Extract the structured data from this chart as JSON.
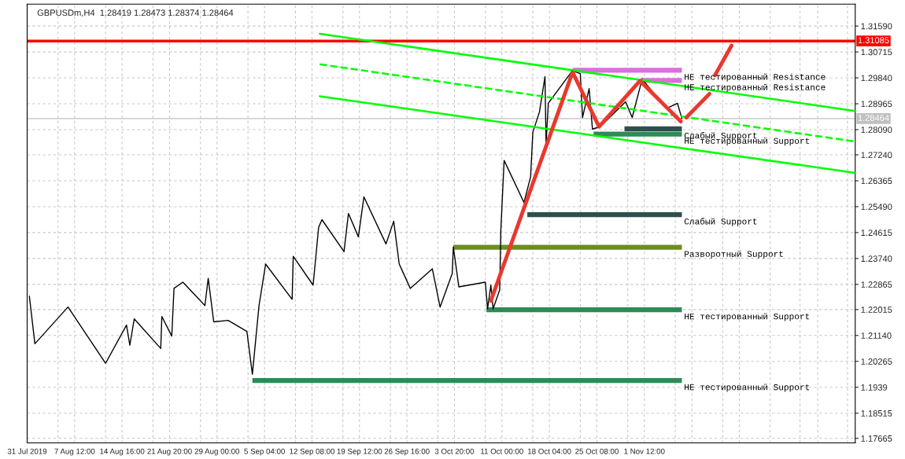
{
  "chart_data": {
    "type": "line",
    "title": "GBPUSDm,H4  1.28419 1.28473 1.28374 1.28464",
    "xlim": [
      "2019-07-31T08:00",
      "2019-12-03T08:00"
    ],
    "ylim": [
      1.1751,
      1.3233
    ],
    "xticks": [
      {
        "value": "2019-07-31T08:00",
        "label": "31 Jul 2019"
      },
      {
        "value": "2019-08-05T00:00",
        "label": null
      },
      {
        "value": "2019-08-07T12:00",
        "label": "7 Aug 12:00"
      },
      {
        "value": "2019-08-12T04:00",
        "label": null
      },
      {
        "value": "2019-08-14T16:00",
        "label": "14 Aug 16:00"
      },
      {
        "value": "2019-08-19T08:00",
        "label": null
      },
      {
        "value": "2019-08-21T20:00",
        "label": "21 Aug 20:00"
      },
      {
        "value": "2019-08-26T12:00",
        "label": null
      },
      {
        "value": "2019-08-29T00:00",
        "label": "29 Aug 00:00"
      },
      {
        "value": "2019-09-02T16:00",
        "label": null
      },
      {
        "value": "2019-09-05T04:00",
        "label": "5 Sep 04:00"
      },
      {
        "value": "2019-09-09T20:00",
        "label": null
      },
      {
        "value": "2019-09-12T08:00",
        "label": "12 Sep 08:00"
      },
      {
        "value": "2019-09-17T00:00",
        "label": null
      },
      {
        "value": "2019-09-19T12:00",
        "label": "19 Sep 12:00"
      },
      {
        "value": "2019-09-24T04:00",
        "label": null
      },
      {
        "value": "2019-09-26T16:00",
        "label": "26 Sep 16:00"
      },
      {
        "value": "2019-10-01T08:00",
        "label": null
      },
      {
        "value": "2019-10-03T20:00",
        "label": "3 Oct 20:00"
      },
      {
        "value": "2019-10-08T12:00",
        "label": null
      },
      {
        "value": "2019-10-11T00:00",
        "label": "11 Oct 00:00"
      },
      {
        "value": "2019-10-15T16:00",
        "label": null
      },
      {
        "value": "2019-10-18T04:00",
        "label": "18 Oct 04:00"
      },
      {
        "value": "2019-10-22T20:00",
        "label": null
      },
      {
        "value": "2019-10-25T08:00",
        "label": "25 Oct 08:00"
      },
      {
        "value": "2019-10-30T00:00",
        "label": null
      },
      {
        "value": "2019-11-01T12:00",
        "label": "1 Nov 12:00"
      },
      {
        "value": "2019-11-06T04:00",
        "label": null
      },
      {
        "value": "2019-11-08T16:00",
        "label": null
      },
      {
        "value": "2019-11-13T08:00",
        "label": null
      },
      {
        "value": "2019-11-15T20:00",
        "label": null
      },
      {
        "value": "2019-11-20T12:00",
        "label": null
      },
      {
        "value": "2019-11-25T00:00",
        "label": null
      },
      {
        "value": "2019-11-27T16:00",
        "label": null
      },
      {
        "value": "2019-12-02T04:00",
        "label": null
      }
    ],
    "yticks": [
      {
        "value": 1.3159,
        "label": "1.31590"
      },
      1.30715,
      {
        "value": 1.2984,
        "label": "1.29840"
      },
      1.28965,
      {
        "value": 1.2809,
        "label": "1.28090"
      },
      {
        "value": 1.2724,
        "label": "1.27240"
      },
      1.26365,
      {
        "value": 1.2549,
        "label": "1.25490"
      },
      1.24615,
      {
        "value": 1.2374,
        "label": "1.23740"
      },
      1.22865,
      1.22015,
      {
        "value": 1.2114,
        "label": "1.21140"
      },
      1.20265,
      1.1939,
      1.18515,
      1.17665
    ],
    "grid": true,
    "series": [
      {
        "color": "#000000",
        "x": [
          "2019-07-31T16:00",
          "2019-08-01T12:00",
          "2019-08-06T12:00",
          "2019-08-12T04:00",
          "2019-08-15T08:00",
          "2019-08-15T20:00",
          "2019-08-16T12:00",
          "2019-08-20T12:00",
          "2019-08-20T16:00",
          "2019-08-22T04:00",
          "2019-08-22T12:00",
          "2019-08-23T20:00",
          "2019-08-27T04:00",
          "2019-08-27T16:00",
          "2019-08-28T12:00",
          "2019-08-30T16:00",
          "2019-09-02T12:00",
          "2019-09-03T08:00",
          "2019-09-04T08:00",
          "2019-09-05T08:00",
          "2019-09-09T08:00",
          "2019-09-09T12:00",
          "2019-09-12T12:00",
          "2019-09-13T08:00",
          "2019-09-13T20:00",
          "2019-09-17T04:00",
          "2019-09-17T20:00",
          "2019-09-19T08:00",
          "2019-09-20T04:00",
          "2019-09-23T12:00",
          "2019-09-24T16:00",
          "2019-09-25T12:00",
          "2019-09-27T04:00",
          "2019-09-30T12:00",
          "2019-10-01T16:00",
          "2019-10-03T12:00",
          "2019-10-03T16:00",
          "2019-10-04T12:00",
          "2019-10-08T12:00",
          "2019-10-08T20:00",
          "2019-10-09T08:00",
          "2019-10-09T16:00",
          "2019-10-10T16:00",
          "2019-10-10T20:00",
          "2019-10-11T08:00",
          "2019-10-14T08:00",
          "2019-10-15T08:00",
          "2019-10-15T16:00",
          "2019-10-16T16:00",
          "2019-10-17T12:00",
          "2019-10-17T16:00",
          "2019-10-18T00:00",
          "2019-10-21T16:00",
          "2019-10-22T20:00",
          "2019-10-23T04:00",
          "2019-10-24T04:00",
          "2019-10-24T16:00",
          "2019-10-25T20:00",
          "2019-10-29T16:00",
          "2019-10-30T16:00",
          "2019-11-01T04:00",
          "2019-11-04T20:00",
          "2019-11-06T12:00",
          "2019-11-07T04:00"
        ],
        "values": [
          1.2247,
          1.2086,
          1.221,
          1.202,
          1.2149,
          1.2081,
          1.217,
          1.207,
          1.2178,
          1.2112,
          1.2273,
          1.2294,
          1.2215,
          1.2307,
          1.216,
          1.2165,
          1.2128,
          1.1983,
          1.2215,
          1.2355,
          1.2236,
          1.2381,
          1.2284,
          1.2479,
          1.2505,
          1.2397,
          1.2526,
          1.2447,
          1.2582,
          1.2423,
          1.25,
          1.2355,
          1.2273,
          1.2339,
          1.221,
          1.2323,
          1.2413,
          1.2278,
          1.2294,
          1.2204,
          1.2284,
          1.2204,
          1.2268,
          1.2468,
          1.2705,
          1.2563,
          1.265,
          1.28,
          1.2869,
          1.2988,
          1.2761,
          1.2898,
          1.3009,
          1.2998,
          1.285,
          1.2948,
          1.2811,
          1.2819,
          1.2903,
          1.285,
          1.298,
          1.288,
          1.2898,
          1.28464
        ]
      },
      {
        "color": "#00ff00",
        "x": [
          "2019-09-13T12:00",
          "2019-12-03T08:00"
        ],
        "values": [
          1.3133,
          1.2872
        ]
      },
      {
        "color": "#00ff00",
        "line_style": "dashed",
        "x": [
          "2019-09-13T12:00",
          "2019-12-03T08:00"
        ],
        "values": [
          1.303,
          1.2769
        ]
      },
      {
        "color": "#00ff00",
        "x": [
          "2019-09-13T12:00",
          "2019-12-03T08:00"
        ],
        "values": [
          1.2922,
          1.2663
        ]
      },
      {
        "name": "НЕ тестированный Resistance",
        "color": "#dd6edd",
        "x": [
          "2019-10-21T16:00",
          "2019-11-07T04:00"
        ],
        "values": [
          1.301,
          1.301
        ]
      },
      {
        "name": "НЕ тестированный Resistance",
        "color": "#dd6edd",
        "x": [
          "2019-11-01T00:00",
          "2019-11-07T04:00"
        ],
        "values": [
          1.2975,
          1.2975
        ]
      },
      {
        "name": "НЕ тестированный Support",
        "color": "#2e8b57",
        "x": [
          "2019-10-24T20:00",
          "2019-11-07T04:00"
        ],
        "values": [
          1.2794,
          1.2794
        ]
      },
      {
        "name": "Слабый Support",
        "color": "#2f4f4f",
        "x": [
          "2019-10-29T12:00",
          "2019-11-07T04:00"
        ],
        "values": [
          1.2812,
          1.2812
        ]
      },
      {
        "name": "Слабый Support",
        "color": "#2f4f4f",
        "x": [
          "2019-10-14T20:00",
          "2019-11-07T04:00"
        ],
        "values": [
          1.2522,
          1.2522
        ]
      },
      {
        "name": "Разворотный Support",
        "color": "#6b8e23",
        "x": [
          "2019-10-03T16:00",
          "2019-11-07T04:00"
        ],
        "values": [
          1.2412,
          1.2412
        ]
      },
      {
        "name": "НЕ тестированный Support",
        "color": "#2e8b57",
        "x": [
          "2019-10-08T16:00",
          "2019-11-07T04:00"
        ],
        "values": [
          1.2201,
          1.2201
        ]
      },
      {
        "name": "НЕ тестированный Support",
        "color": "#2e8b57",
        "x": [
          "2019-09-03T08:00",
          "2019-11-07T04:00"
        ],
        "values": [
          1.1962,
          1.1962
        ]
      },
      {
        "color": "#e8392e",
        "x": [
          "2019-10-09T08:00",
          "2019-10-21T16:00",
          "2019-10-25T16:00",
          "2019-10-31T20:00",
          "2019-11-07T00:00"
        ],
        "values": [
          1.2231,
          1.3003,
          1.2819,
          1.2974,
          1.2837
        ]
      },
      {
        "color": "#e8392e",
        "x": [
          "2019-11-07T20:00",
          "2019-11-11T08:00"
        ],
        "values": [
          1.285,
          1.293
        ]
      },
      {
        "color": "#e8392e",
        "x": [
          "2019-11-12T04:00",
          "2019-11-14T16:00"
        ],
        "values": [
          1.2993,
          1.3093
        ]
      }
    ],
    "ref_lines": [
      {
        "axis": "y",
        "value": 1.31085,
        "label": "1.31085",
        "color": "#ff0000"
      },
      {
        "axis": "y",
        "value": 1.28464,
        "label": "1.28464",
        "color": "#c0c0c0"
      }
    ]
  }
}
